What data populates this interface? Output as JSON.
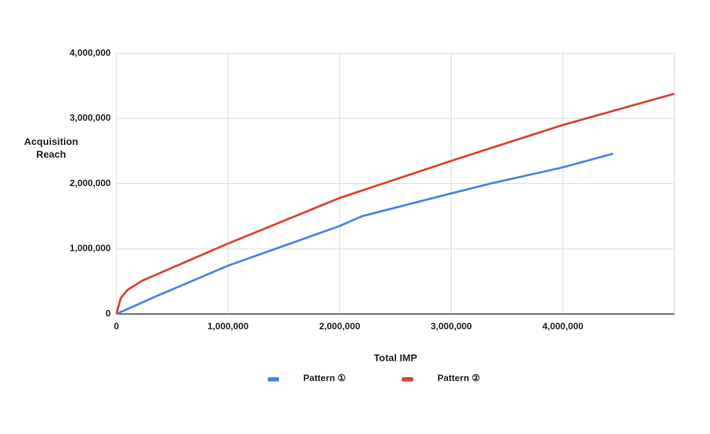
{
  "chart_data": {
    "type": "line",
    "xlabel": "Total IMP",
    "ylabel": "Acquisition Reach",
    "xlim": [
      0,
      5000000
    ],
    "xticks": [
      0,
      {
        "value": 1000000,
        "label": "1,000,000"
      },
      {
        "value": 2000000,
        "label": "2,000,000"
      },
      {
        "value": 3000000,
        "label": "3,000,000"
      },
      {
        "value": 4000000,
        "label": "4,000,000"
      }
    ],
    "ylim": [
      0,
      4000000
    ],
    "yticks": [
      0,
      {
        "value": 1000000,
        "label": "1,000,000"
      },
      {
        "value": 2000000,
        "label": "2,000,000"
      },
      {
        "value": 3000000,
        "label": "3,000,000"
      },
      {
        "value": 4000000,
        "label": "4,000,000"
      }
    ],
    "grid": true,
    "legend": "bottom",
    "series": [
      {
        "name": "Pattern ①",
        "color": "#4a86e8",
        "x": [
          0,
          357000,
          1000000,
          2000000,
          2200000,
          3000000,
          3350000,
          4000000,
          4450000
        ],
        "values": [
          0,
          272000,
          741000,
          1350000,
          1500000,
          1850000,
          2000000,
          2250000,
          2460000
        ]
      },
      {
        "name": "Pattern ②",
        "color": "#db4437",
        "x": [
          0,
          38000,
          100000,
          230000,
          1000000,
          2000000,
          3000000,
          4000000,
          5000000
        ],
        "values": [
          0,
          240000,
          370000,
          510000,
          1080000,
          1780000,
          2350000,
          2900000,
          3380000
        ]
      }
    ]
  }
}
